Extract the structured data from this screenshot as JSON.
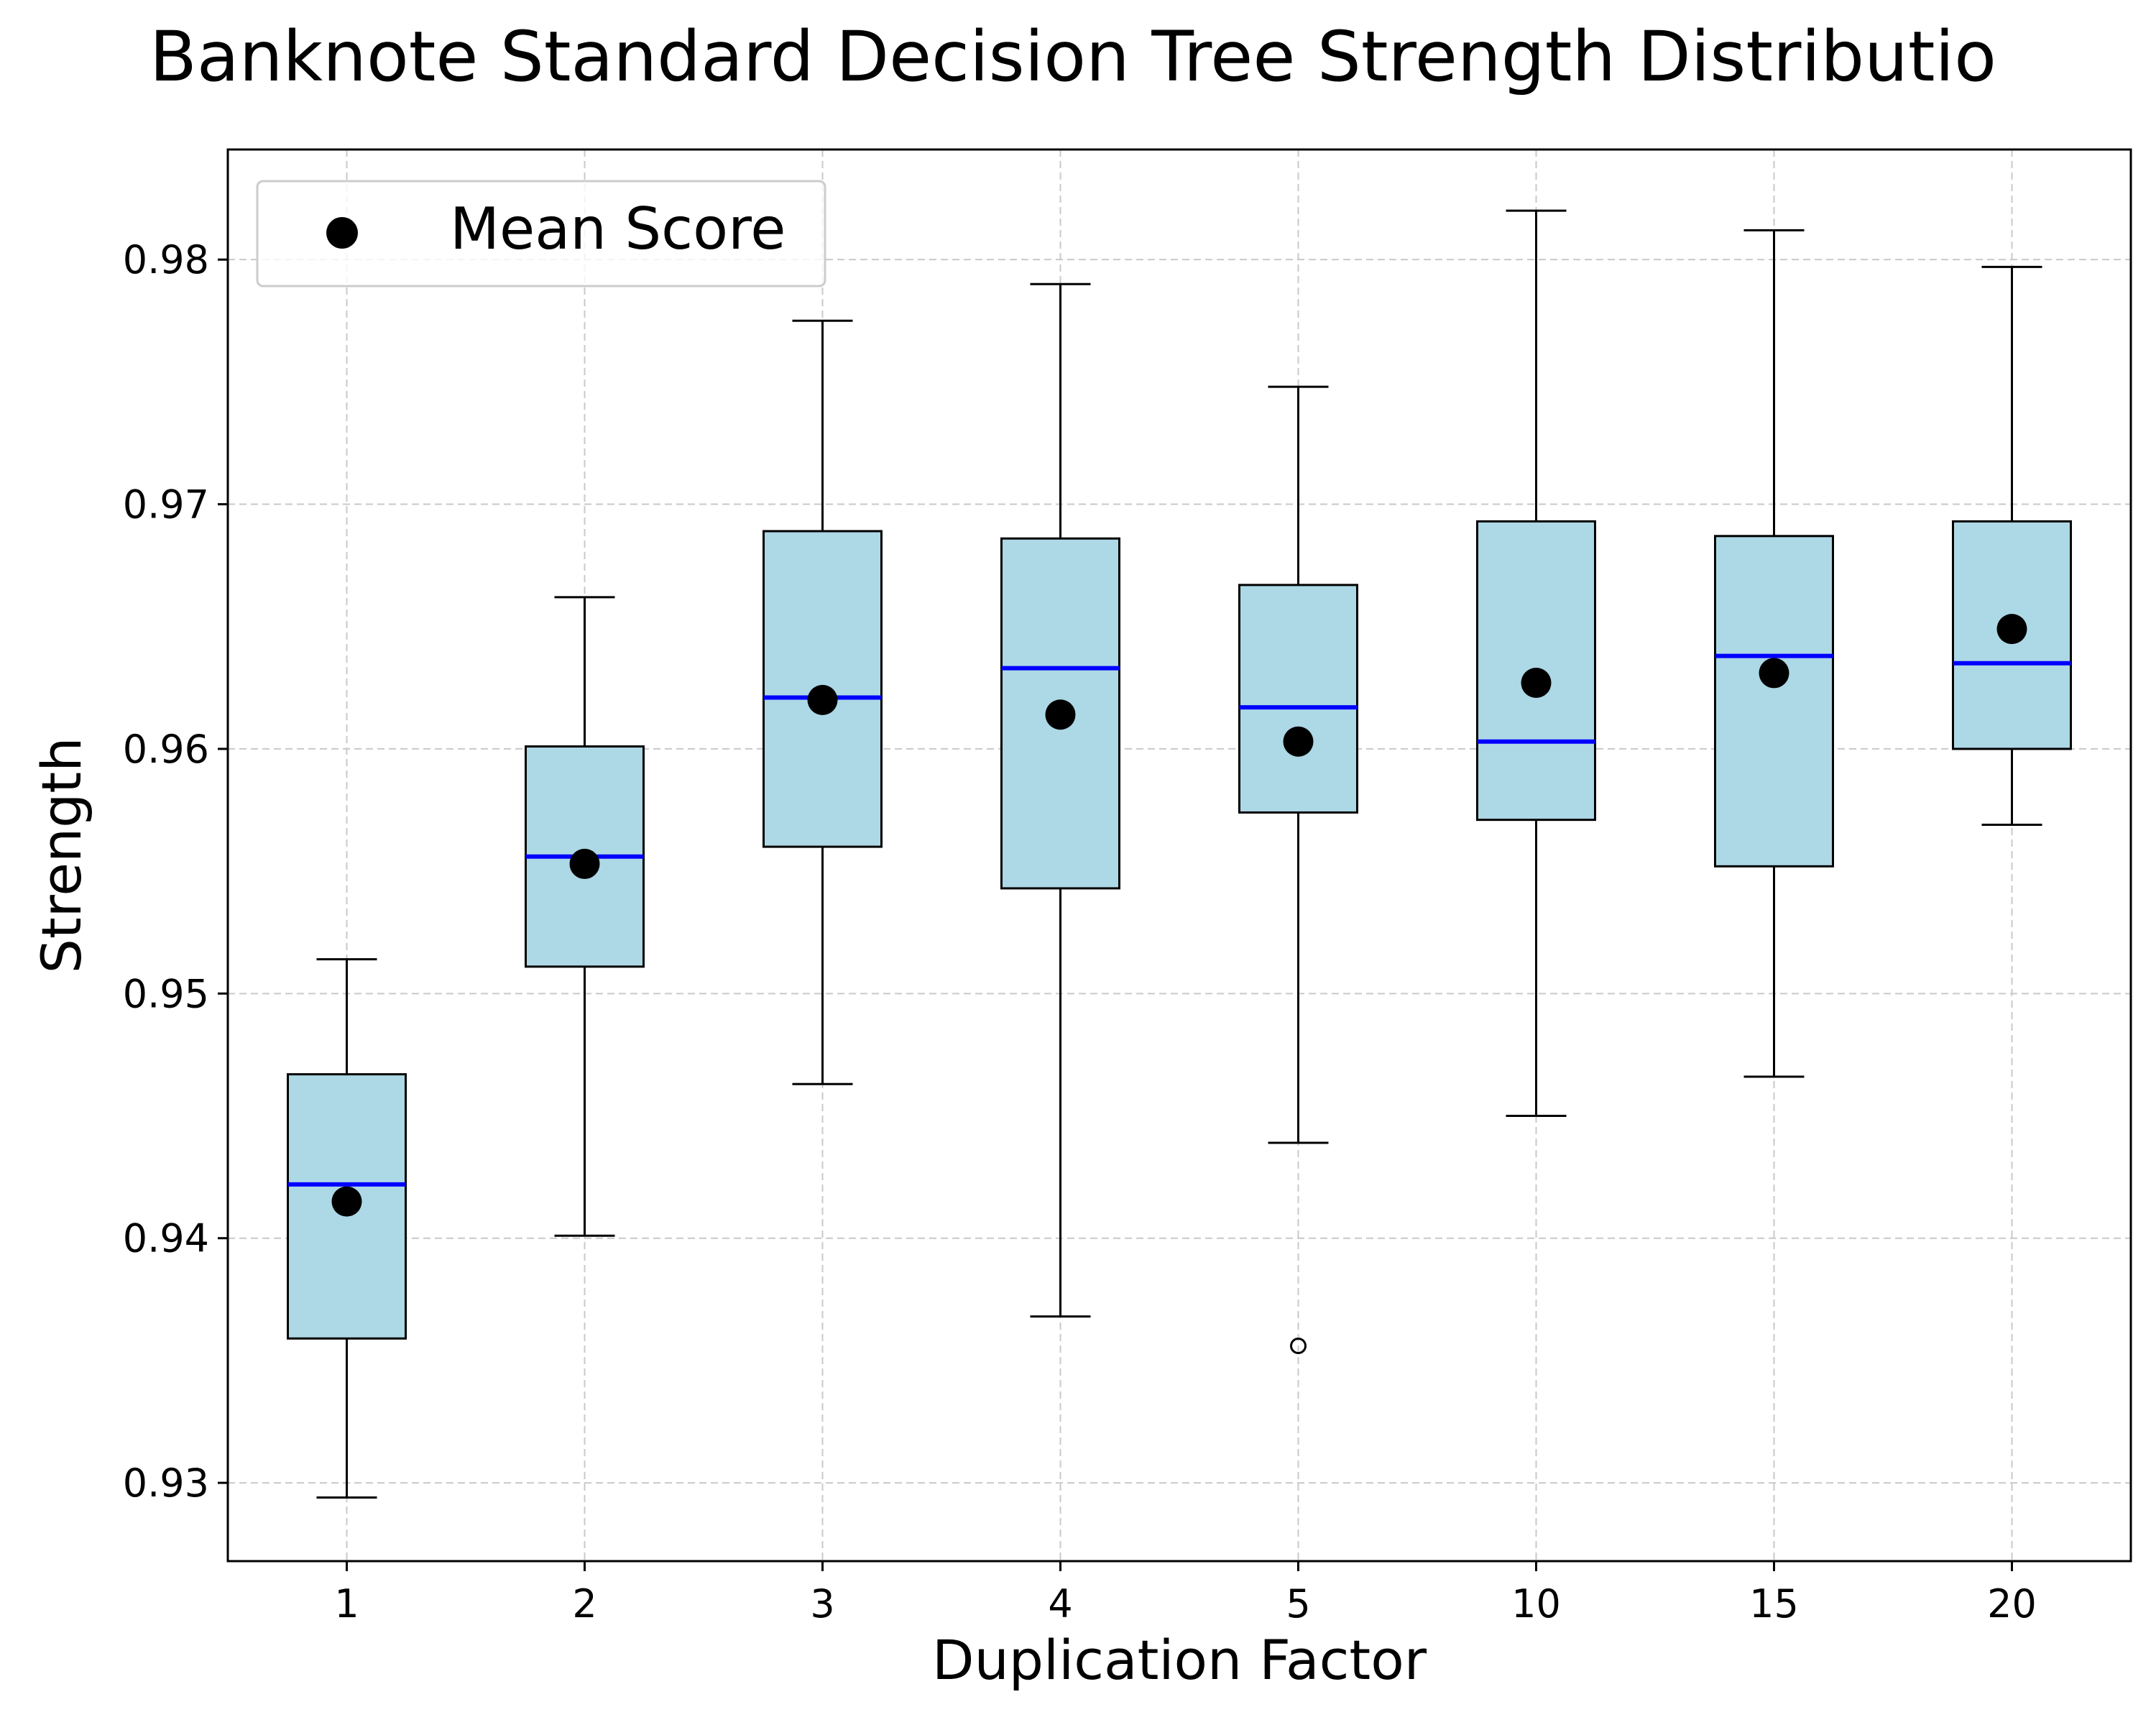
{
  "chart_data": {
    "type": "box",
    "title": "Banknote Standard Decision Tree Strength Distributio",
    "xlabel": "Duplication Factor",
    "ylabel": "Strength",
    "categories": [
      "1",
      "2",
      "3",
      "4",
      "5",
      "10",
      "15",
      "20"
    ],
    "ylim": [
      0.9268,
      0.9845
    ],
    "yticks": [
      0.93,
      0.94,
      0.95,
      0.96,
      0.97,
      0.98
    ],
    "ytick_labels": [
      "0.93",
      "0.94",
      "0.95",
      "0.96",
      "0.97",
      "0.98"
    ],
    "grid": true,
    "legend": {
      "position": "top-left",
      "entries": [
        "Mean Score"
      ]
    },
    "boxes": [
      {
        "category": "1",
        "whisker_low": 0.9294,
        "q1": 0.9359,
        "median": 0.9422,
        "q3": 0.9467,
        "whisker_high": 0.9514,
        "mean": 0.9415,
        "outliers": []
      },
      {
        "category": "2",
        "whisker_low": 0.9401,
        "q1": 0.9511,
        "median": 0.9556,
        "q3": 0.9601,
        "whisker_high": 0.9662,
        "mean": 0.9553,
        "outliers": []
      },
      {
        "category": "3",
        "whisker_low": 0.9463,
        "q1": 0.956,
        "median": 0.9621,
        "q3": 0.9689,
        "whisker_high": 0.9775,
        "mean": 0.962,
        "outliers": []
      },
      {
        "category": "4",
        "whisker_low": 0.9368,
        "q1": 0.9543,
        "median": 0.9633,
        "q3": 0.9686,
        "whisker_high": 0.979,
        "mean": 0.9614,
        "outliers": []
      },
      {
        "category": "5",
        "whisker_low": 0.9439,
        "q1": 0.9574,
        "median": 0.9617,
        "q3": 0.9667,
        "whisker_high": 0.9748,
        "mean": 0.9603,
        "outliers": [
          0.9356
        ]
      },
      {
        "category": "10",
        "whisker_low": 0.945,
        "q1": 0.9571,
        "median": 0.9603,
        "q3": 0.9693,
        "whisker_high": 0.982,
        "mean": 0.9627,
        "outliers": []
      },
      {
        "category": "15",
        "whisker_low": 0.9466,
        "q1": 0.9552,
        "median": 0.9638,
        "q3": 0.9687,
        "whisker_high": 0.9812,
        "mean": 0.9631,
        "outliers": []
      },
      {
        "category": "20",
        "whisker_low": 0.9569,
        "q1": 0.96,
        "median": 0.9635,
        "q3": 0.9693,
        "whisker_high": 0.9797,
        "mean": 0.9649,
        "outliers": []
      }
    ],
    "colors": {
      "box_fill": "#add8e6",
      "median": "#0000ff",
      "mean": "#000000",
      "grid": "#c9c9c9"
    }
  }
}
